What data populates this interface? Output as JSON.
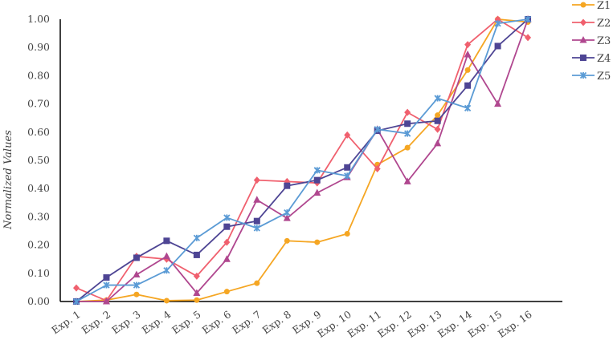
{
  "chart_data": {
    "type": "line",
    "title": "",
    "xlabel": "",
    "ylabel": "Normalized Values",
    "ylim": [
      0,
      1.0
    ],
    "yticks": [
      "0.00",
      "0.10",
      "0.20",
      "0.30",
      "0.40",
      "0.50",
      "0.60",
      "0.70",
      "0.80",
      "0.90",
      "1.00"
    ],
    "grid": false,
    "legend_position": "right-top",
    "categories": [
      "Exp. 1",
      "Exp. 2",
      "Exp. 3",
      "Exp. 4",
      "Exp. 5",
      "Exp. 6",
      "Exp. 7",
      "Exp. 8",
      "Exp. 9",
      "Exp. 10",
      "Exp. 11",
      "Exp. 12",
      "Exp. 13",
      "Exp. 14",
      "Exp. 15",
      "Exp. 16"
    ],
    "series": [
      {
        "name": "Z1",
        "color": "#F5A623",
        "marker": "circle",
        "values": [
          0.0,
          0.005,
          0.025,
          0.003,
          0.005,
          0.035,
          0.065,
          0.215,
          0.21,
          0.24,
          0.485,
          0.545,
          0.66,
          0.82,
          1.0,
          0.99
        ]
      },
      {
        "name": "Z2",
        "color": "#F0606E",
        "marker": "diamond",
        "values": [
          0.048,
          0.003,
          0.16,
          0.15,
          0.09,
          0.21,
          0.43,
          0.425,
          0.42,
          0.59,
          0.47,
          0.67,
          0.61,
          0.91,
          1.0,
          0.935
        ]
      },
      {
        "name": "Z3",
        "color": "#B0478F",
        "marker": "triangle",
        "values": [
          0.0,
          0.0,
          0.095,
          0.16,
          0.03,
          0.15,
          0.36,
          0.295,
          0.385,
          0.44,
          0.61,
          0.425,
          0.56,
          0.875,
          0.7,
          1.0
        ]
      },
      {
        "name": "Z4",
        "color": "#4E4594",
        "marker": "square",
        "values": [
          0.0,
          0.085,
          0.155,
          0.215,
          0.165,
          0.265,
          0.285,
          0.41,
          0.43,
          0.475,
          0.605,
          0.63,
          0.64,
          0.765,
          0.905,
          1.0
        ]
      },
      {
        "name": "Z5",
        "color": "#5B9BD5",
        "marker": "star",
        "values": [
          0.0,
          0.058,
          0.058,
          0.11,
          0.225,
          0.297,
          0.26,
          0.315,
          0.465,
          0.445,
          0.61,
          0.595,
          0.72,
          0.685,
          0.985,
          1.0
        ]
      }
    ]
  }
}
